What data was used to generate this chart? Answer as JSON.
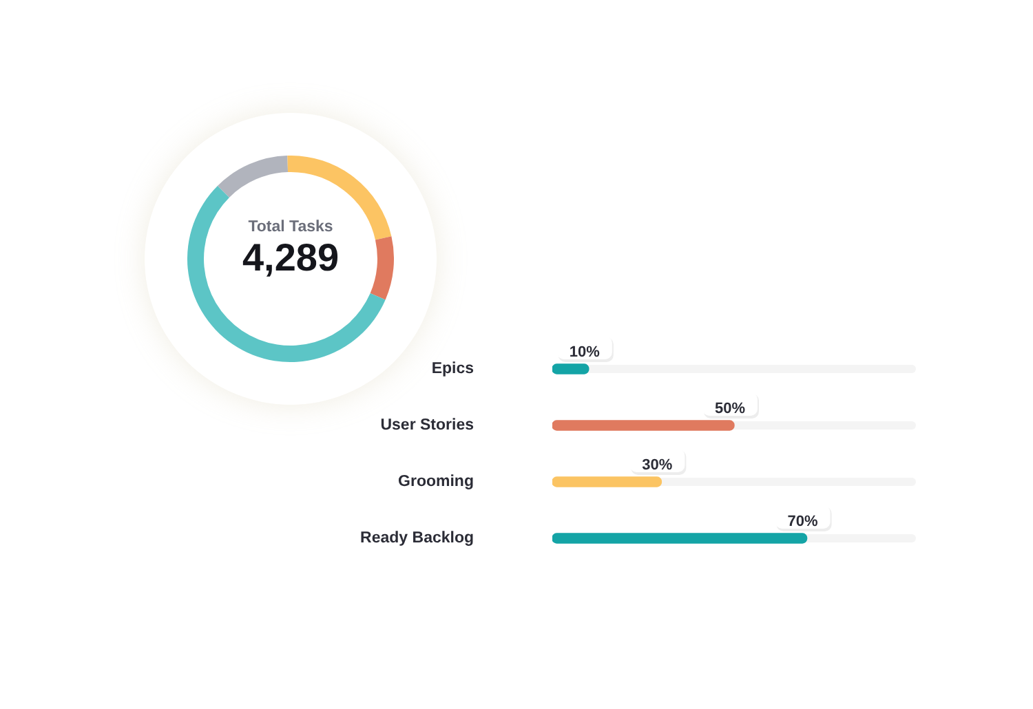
{
  "chart_data": [
    {
      "type": "donut",
      "categories": [
        null,
        null,
        null,
        null
      ],
      "values": [
        12,
        22,
        10,
        56
      ],
      "colors": [
        "#b1b4bd",
        "#fcc463",
        "#e07a5f",
        "#5cc5c6"
      ],
      "annotations": [
        "Total Tasks",
        "4,289"
      ]
    },
    {
      "type": "bar",
      "orientation": "horizontal",
      "categories": [
        "Epics",
        "User Stories",
        "Grooming",
        "Ready Backlog"
      ],
      "values": [
        10,
        50,
        30,
        70
      ],
      "colors": [
        "#14a4a6",
        "#e07a5f",
        "#fbc463",
        "#14a4a6"
      ],
      "xlim": [
        0,
        100
      ],
      "value_labels": [
        "10%",
        "50%",
        "30%",
        "70%"
      ],
      "tick_labels": "y"
    }
  ]
}
